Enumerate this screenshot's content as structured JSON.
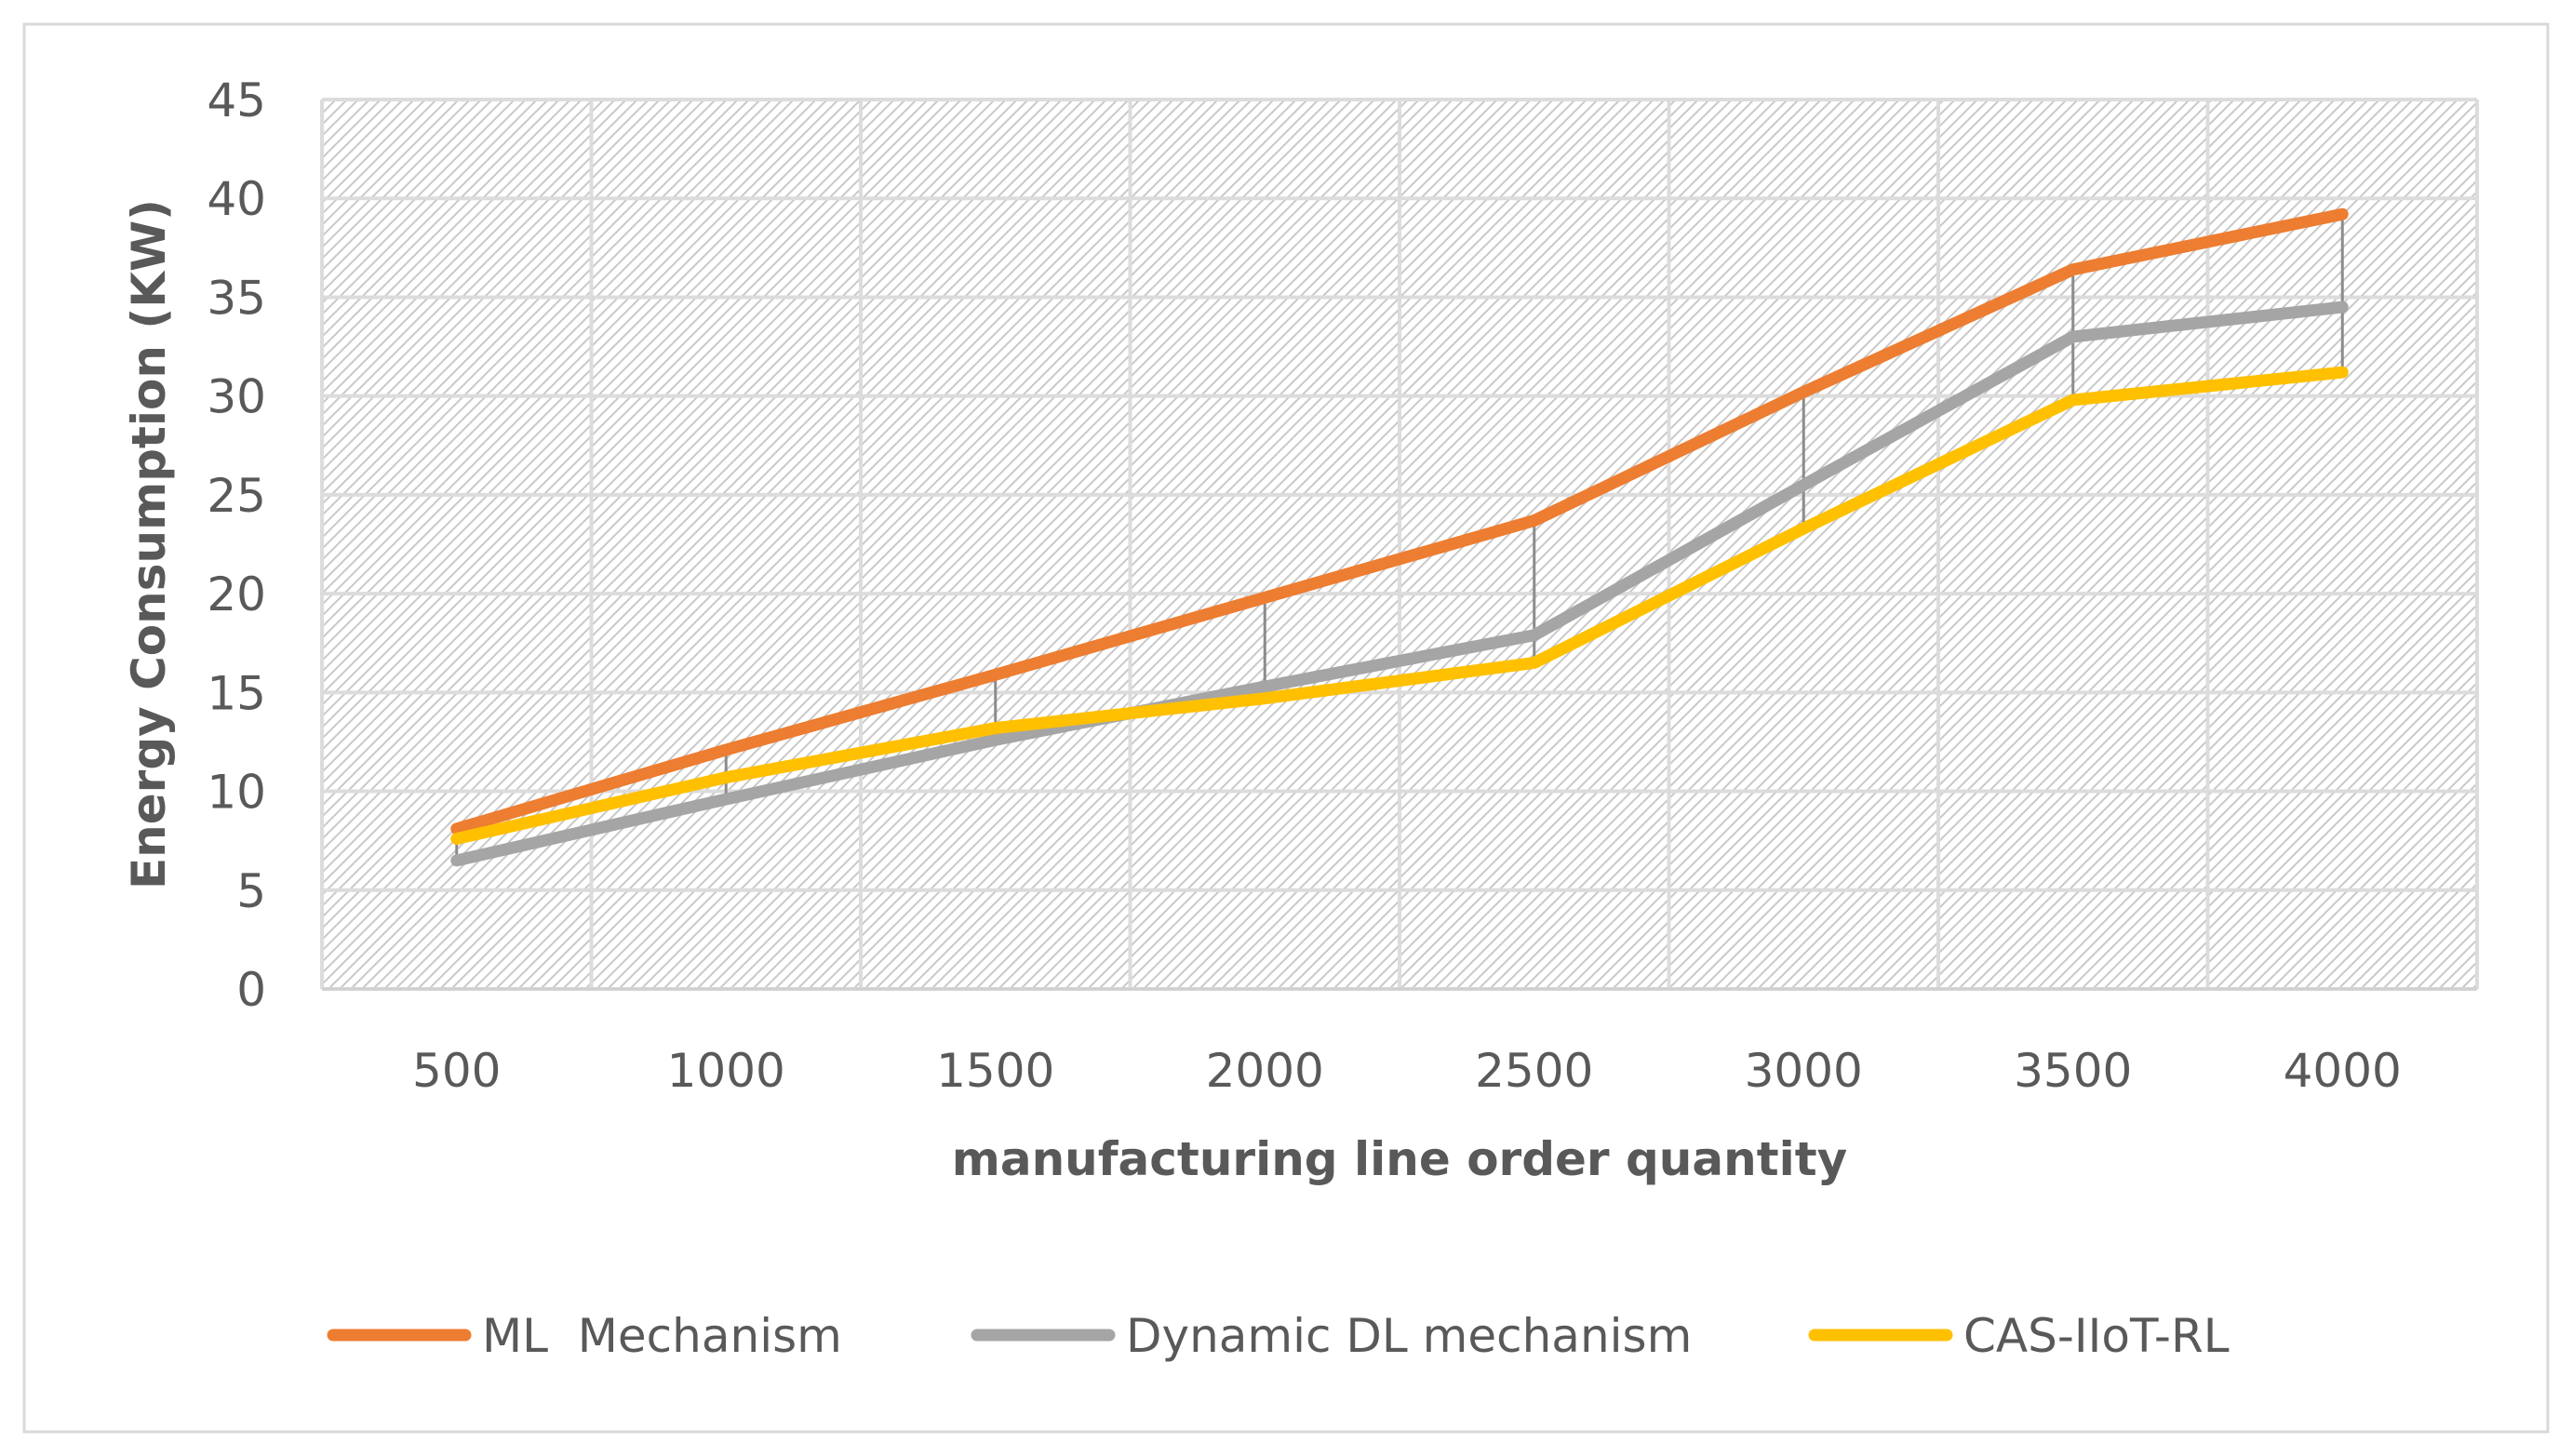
{
  "chart_data": {
    "type": "line",
    "title": "",
    "xlabel": "manufacturing line order quantity",
    "ylabel": "Energy Consumption (KW)",
    "categories": [
      "500",
      "1000",
      "1500",
      "2000",
      "2500",
      "3000",
      "3500",
      "4000"
    ],
    "ylim": [
      0,
      45
    ],
    "yticks": [
      0,
      5,
      10,
      15,
      20,
      25,
      30,
      35,
      40,
      45
    ],
    "grid": true,
    "high_low_lines": true,
    "legend_position": "bottom",
    "series": [
      {
        "name": "ML  Mechanism",
        "color": "#ED7D31",
        "values": [
          8.1,
          12.1,
          15.9,
          19.8,
          23.7,
          30.2,
          36.4,
          39.2
        ]
      },
      {
        "name": "Dynamic DL mechanism",
        "color": "#A5A5A5",
        "values": [
          6.5,
          9.6,
          12.6,
          15.3,
          17.9,
          25.5,
          33.0,
          34.5
        ]
      },
      {
        "name": "CAS-IIoT-RL",
        "color": "#FFC000",
        "values": [
          7.6,
          10.7,
          13.2,
          14.7,
          16.5,
          23.3,
          29.8,
          31.2
        ]
      }
    ]
  }
}
